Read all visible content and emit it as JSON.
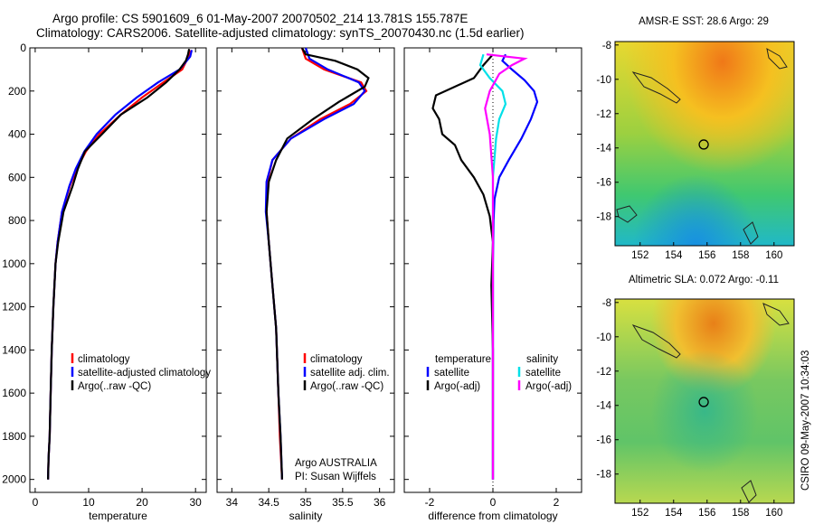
{
  "header": {
    "line1": "Argo profile: CS 5901609_6 01-May-2007 20070502_214 13.781S 155.787E",
    "line2": "Climatology: CARS2006. Satellite-adjusted climatology: synTS_20070430.nc (1.5d earlier)"
  },
  "stamp": "CSIRO 09-May-2007 10:34:03",
  "colors": {
    "climatology": "#ff0000",
    "satellite": "#0000ff",
    "argo": "#000000",
    "sat_diff": "#00e0e8",
    "argo_diff": "#ff00ff"
  },
  "chart_data": [
    {
      "type": "line",
      "xlabel": "temperature",
      "ylabel": "",
      "xlim": [
        -1,
        32
      ],
      "ylim": [
        2060,
        0
      ],
      "y_inverted": true,
      "xticks": [
        0,
        10,
        20,
        30
      ],
      "yticks": [
        0,
        200,
        400,
        600,
        800,
        1000,
        1200,
        1400,
        1600,
        1800,
        2000
      ],
      "legend": [
        "climatology",
        "satellite-adjusted climatology",
        "Argo(..raw -QC)"
      ],
      "legend_loc": "lower-left",
      "series": [
        {
          "name": "climatology",
          "color": "#ff0000",
          "x": [
            28.9,
            28.7,
            27.5,
            24.0,
            20.0,
            16.0,
            12.0,
            9.5,
            7.8,
            6.5,
            5.0,
            4.2,
            3.8,
            3.4,
            3.1,
            2.9,
            2.7,
            2.5,
            2.4
          ],
          "y": [
            10,
            40,
            100,
            160,
            230,
            310,
            400,
            480,
            560,
            640,
            760,
            900,
            1000,
            1200,
            1400,
            1600,
            1800,
            1900,
            2000
          ]
        },
        {
          "name": "satellite-adjusted climatology",
          "color": "#0000ff",
          "x": [
            29.3,
            29.0,
            27.0,
            23.0,
            19.0,
            15.0,
            11.5,
            9.2,
            7.6,
            6.4,
            5.0,
            4.2,
            3.8,
            3.4,
            3.1,
            2.9,
            2.7,
            2.5,
            2.4
          ],
          "y": [
            10,
            40,
            100,
            160,
            230,
            310,
            400,
            480,
            560,
            640,
            760,
            900,
            1000,
            1200,
            1400,
            1600,
            1800,
            1900,
            2000
          ]
        },
        {
          "name": "Argo(..raw -QC)",
          "color": "#000000",
          "x": [
            28.8,
            28.6,
            28.2,
            27.0,
            24.5,
            21.0,
            16.0,
            12.5,
            9.3,
            8.0,
            7.0,
            5.3,
            4.3,
            3.8,
            3.4,
            3.1,
            2.9,
            2.7,
            2.5,
            2.4
          ],
          "y": [
            5,
            30,
            60,
            100,
            160,
            230,
            310,
            400,
            480,
            560,
            640,
            760,
            900,
            1000,
            1200,
            1400,
            1600,
            1800,
            1900,
            2000
          ]
        }
      ]
    },
    {
      "type": "line",
      "xlabel": "salinity",
      "ylabel": "",
      "xlim": [
        33.8,
        36.2
      ],
      "ylim": [
        2060,
        0
      ],
      "y_inverted": true,
      "xticks": [
        34,
        34.5,
        35,
        35.5,
        36
      ],
      "legend": [
        "climatology",
        "satellite adj. clim.",
        "Argo(..raw -QC)"
      ],
      "legend_loc": "lower-right",
      "annotation": [
        "Argo AUSTRALIA",
        "PI: Susan Wijffels"
      ],
      "series": [
        {
          "name": "climatology",
          "color": "#ff0000",
          "x": [
            34.95,
            35.0,
            35.25,
            35.75,
            35.82,
            35.6,
            35.2,
            34.8,
            34.55,
            34.48,
            34.47,
            34.5,
            34.55,
            34.6,
            34.63,
            34.65,
            34.68
          ],
          "y": [
            0,
            50,
            100,
            160,
            200,
            260,
            330,
            420,
            520,
            620,
            760,
            900,
            1100,
            1300,
            1600,
            1800,
            2000
          ]
        },
        {
          "name": "satellite adj. clim.",
          "color": "#0000ff",
          "x": [
            35.0,
            35.05,
            35.3,
            35.72,
            35.8,
            35.65,
            35.25,
            34.8,
            34.55,
            34.47,
            34.46,
            34.5,
            34.55,
            34.6,
            34.63,
            34.66,
            34.68
          ],
          "y": [
            0,
            50,
            100,
            160,
            200,
            260,
            330,
            420,
            520,
            620,
            760,
            900,
            1100,
            1300,
            1600,
            1800,
            2000
          ]
        },
        {
          "name": "Argo(..raw -QC)",
          "color": "#000000",
          "x": [
            34.95,
            35.0,
            35.4,
            35.7,
            35.85,
            35.8,
            35.45,
            35.1,
            34.75,
            34.6,
            34.5,
            34.47,
            34.5,
            34.55,
            34.6,
            34.63,
            34.66,
            34.68
          ],
          "y": [
            0,
            30,
            60,
            100,
            140,
            180,
            250,
            330,
            420,
            520,
            620,
            760,
            900,
            1100,
            1300,
            1600,
            1800,
            2000
          ]
        }
      ]
    },
    {
      "type": "line",
      "xlabel": "difference from climatology",
      "ylabel": "",
      "xlim": [
        -2.8,
        2.8
      ],
      "ylim": [
        2060,
        0
      ],
      "y_inverted": true,
      "xticks": [
        -2,
        0,
        2
      ],
      "legend": [
        "temperature",
        "satellite",
        "Argo(-adj)",
        "salinity",
        "satellite",
        "Argo(-adj)"
      ],
      "legend_loc": "lower-center",
      "series": [
        {
          "name": "temperature satellite",
          "color": "#0000ff",
          "x": [
            0.4,
            0.3,
            0.6,
            1.0,
            1.3,
            1.4,
            1.2,
            0.9,
            0.5,
            0.2,
            0.05,
            0.02,
            0.0,
            0.0,
            0.0,
            0.0
          ],
          "y": [
            30,
            60,
            100,
            150,
            200,
            250,
            330,
            420,
            520,
            600,
            700,
            800,
            1000,
            1400,
            1800,
            2000
          ]
        },
        {
          "name": "temperature Argo(-adj)",
          "color": "#000000",
          "x": [
            0.0,
            -0.3,
            -0.6,
            -1.8,
            -1.9,
            -1.7,
            -1.6,
            -1.2,
            -1.0,
            -0.6,
            -0.3,
            -0.1,
            0.0,
            -0.05,
            0.0,
            0.0,
            0.0
          ],
          "y": [
            30,
            80,
            140,
            220,
            280,
            330,
            400,
            450,
            520,
            600,
            680,
            780,
            900,
            1100,
            1400,
            1800,
            2000
          ]
        },
        {
          "name": "salinity satellite",
          "color": "#00e0e8",
          "x": [
            -0.3,
            -0.4,
            -0.1,
            0.3,
            0.4,
            0.2,
            0.1,
            0.0,
            0.0,
            0.0
          ],
          "y": [
            30,
            80,
            140,
            200,
            260,
            330,
            420,
            600,
            1000,
            2000
          ]
        },
        {
          "name": "salinity Argo(-adj)",
          "color": "#ff00ff",
          "x": [
            -0.2,
            1.0,
            0.6,
            0.2,
            -0.1,
            -0.25,
            -0.1,
            0.0,
            0.0,
            0.0
          ],
          "y": [
            30,
            50,
            80,
            120,
            200,
            280,
            400,
            600,
            1000,
            2000
          ]
        }
      ]
    },
    {
      "type": "heatmap",
      "title": "AMSR-E SST: 28.6 Argo: 29",
      "xlim": [
        150.5,
        161.2
      ],
      "ylim": [
        -19.7,
        -7.8
      ],
      "xticks": [
        152,
        154,
        156,
        158,
        160
      ],
      "yticks": [
        -8,
        -10,
        -12,
        -14,
        -16,
        -18
      ],
      "marker": {
        "x": 155.8,
        "y": -13.8
      }
    },
    {
      "type": "heatmap",
      "title": "Altimetric SLA: 0.072 Argo: -0.11",
      "xlim": [
        150.5,
        161.2
      ],
      "ylim": [
        -19.7,
        -7.8
      ],
      "xticks": [
        152,
        154,
        156,
        158,
        160
      ],
      "yticks": [
        -8,
        -10,
        -12,
        -14,
        -16,
        -18
      ],
      "marker": {
        "x": 155.8,
        "y": -13.8
      }
    }
  ]
}
